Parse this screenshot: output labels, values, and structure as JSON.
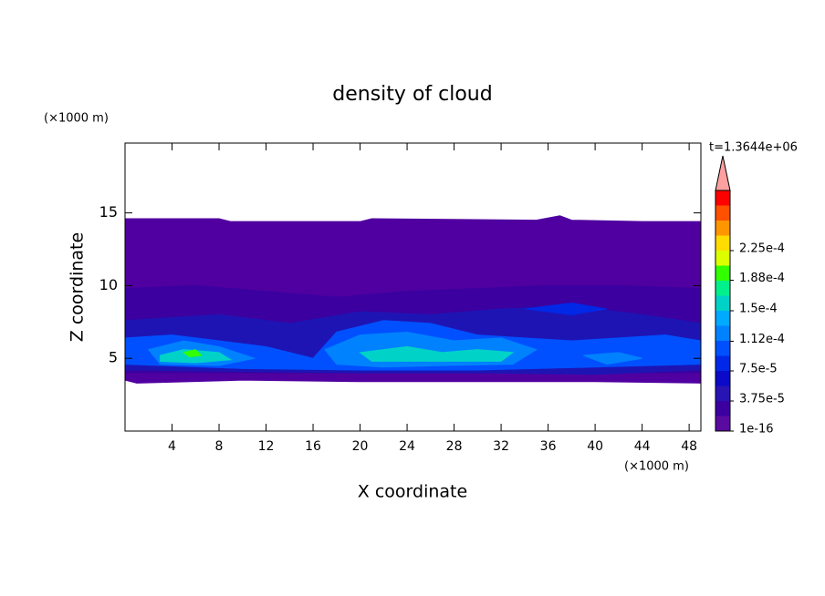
{
  "chart_data": {
    "type": "contour",
    "title": "density of cloud",
    "xlabel": "X coordinate",
    "ylabel": "Z coordinate",
    "x_unit": "(×1000 m)",
    "y_unit": "(×1000 m)",
    "time_label": "t=1.3644e+06",
    "xlim": [
      0,
      49
    ],
    "ylim": [
      0,
      19.8
    ],
    "xticks": [
      4,
      8,
      12,
      16,
      20,
      24,
      28,
      32,
      36,
      40,
      44,
      48
    ],
    "yticks": [
      5,
      10,
      15
    ],
    "colorbar": {
      "colors": [
        "#5a0aa0",
        "#3c00a0",
        "#2814b4",
        "#0a0ac8",
        "#0028e6",
        "#0050ff",
        "#0082ff",
        "#00aaff",
        "#00d2c8",
        "#00f08c",
        "#32ff00",
        "#dcff00",
        "#ffdc00",
        "#ff9600",
        "#ff5000",
        "#ff0000"
      ],
      "extend_color": "#ffa0a0",
      "ticks": [
        {
          "value": 1e-16,
          "label": "1e-16"
        },
        {
          "value": 3.75e-05,
          "label": "3.75e-5"
        },
        {
          "value": 7.5e-05,
          "label": "7.5e-5"
        },
        {
          "value": 0.000112,
          "label": "1.12e-4"
        },
        {
          "value": 0.00015,
          "label": "1.5e-4"
        },
        {
          "value": 0.000188,
          "label": "1.88e-4"
        },
        {
          "value": 0.000225,
          "label": "2.25e-4"
        }
      ]
    },
    "regions": [
      {
        "color": "#5000a0",
        "x": [
          0,
          8,
          9,
          20,
          21,
          35,
          37,
          38,
          44,
          49,
          49,
          40,
          30,
          20,
          10,
          1,
          0
        ],
        "y": [
          14.6,
          14.6,
          14.4,
          14.4,
          14.6,
          14.5,
          14.8,
          14.5,
          14.4,
          14.4,
          3.3,
          3.4,
          3.4,
          3.4,
          3.5,
          3.3,
          3.5
        ]
      },
      {
        "color": "#3c00a0",
        "x": [
          0,
          6,
          12,
          18,
          24,
          30,
          36,
          42,
          49,
          49,
          0
        ],
        "y": [
          9.8,
          10,
          9.6,
          9.2,
          9.6,
          9.8,
          10,
          10,
          9.8,
          4,
          4
        ]
      },
      {
        "color": "#1e14b4",
        "x": [
          0,
          8,
          14,
          20,
          26,
          32,
          38,
          44,
          49,
          49,
          40,
          30,
          20,
          10,
          0
        ],
        "y": [
          7.6,
          8,
          7.4,
          8.2,
          8,
          8.4,
          8.6,
          8,
          7.4,
          4.2,
          3.9,
          4,
          4,
          4.1,
          4.2
        ]
      },
      {
        "color": "#0028e6",
        "x": [
          34,
          38,
          41,
          38
        ],
        "y": [
          8.4,
          8.8,
          8.4,
          8
        ]
      },
      {
        "color": "#0050ff",
        "x": [
          0,
          4,
          8,
          12,
          16,
          18,
          22,
          26,
          30,
          34,
          38,
          42,
          46,
          49,
          49,
          40,
          30,
          20,
          10,
          0
        ],
        "y": [
          6.4,
          6.6,
          6.2,
          5.8,
          5,
          6.8,
          7.6,
          7.4,
          6.6,
          6.4,
          6.2,
          6.4,
          6.6,
          6.2,
          4.6,
          4.4,
          4.2,
          4.2,
          4.3,
          4.6
        ]
      },
      {
        "color": "#0082ff",
        "x": [
          2,
          5,
          8,
          11,
          8,
          3
        ],
        "y": [
          5.6,
          6.2,
          5.8,
          5,
          4.5,
          4.6
        ]
      },
      {
        "color": "#0082ff",
        "x": [
          17,
          20,
          24,
          28,
          32,
          35,
          33,
          27,
          22,
          18
        ],
        "y": [
          5.6,
          6.6,
          6.8,
          6.2,
          6.4,
          5.6,
          4.6,
          4.5,
          4.4,
          4.6
        ]
      },
      {
        "color": "#0082ff",
        "x": [
          39,
          42,
          44,
          41
        ],
        "y": [
          5.2,
          5.4,
          5,
          4.6
        ]
      },
      {
        "color": "#00d2c8",
        "x": [
          3,
          5,
          8,
          9,
          6,
          3
        ],
        "y": [
          5.2,
          5.6,
          5.4,
          4.9,
          4.7,
          4.8
        ]
      },
      {
        "color": "#00d2c8",
        "x": [
          20,
          24,
          27,
          30,
          33,
          32,
          26,
          21
        ],
        "y": [
          5.4,
          5.8,
          5.4,
          5.6,
          5.4,
          4.8,
          4.8,
          4.8
        ]
      },
      {
        "color": "#32ff00",
        "x": [
          5,
          6,
          6.5,
          5.5
        ],
        "y": [
          5.4,
          5.6,
          5.2,
          5.1
        ]
      }
    ]
  }
}
